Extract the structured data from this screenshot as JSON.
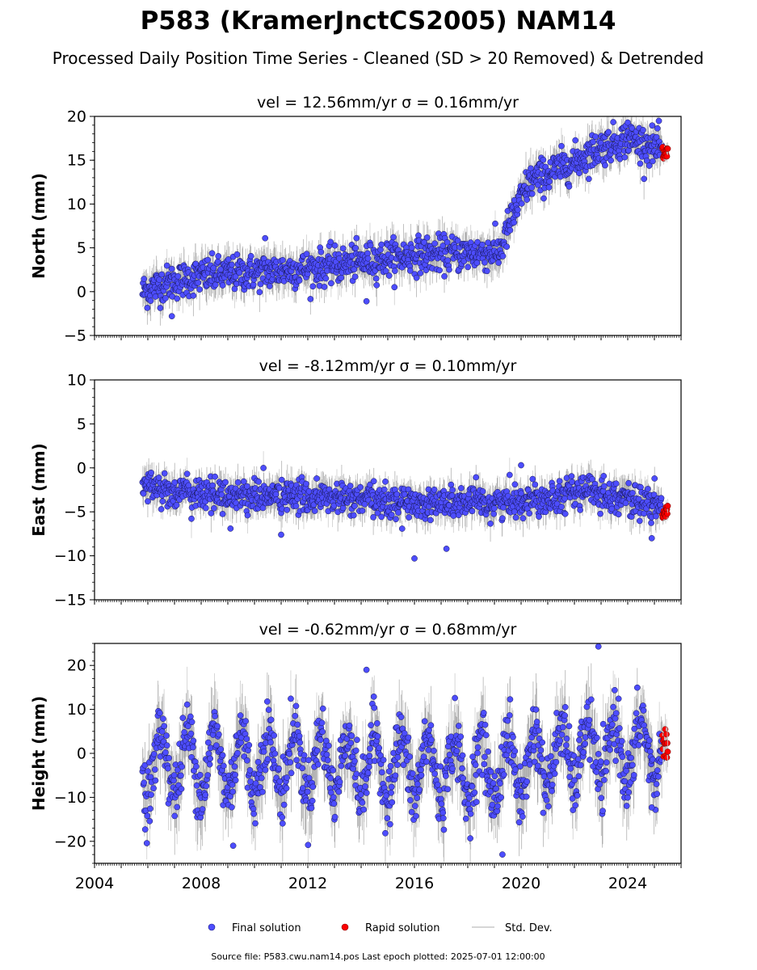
{
  "title": "P583 (KramerJnctCS2005) NAM14",
  "subtitle": "Processed Daily Position Time Series - Cleaned (SD > 20 Removed) & Detrended",
  "footer": "Source file: P583.cwu.nam14.pos  Last epoch plotted: 2025-07-01 12:00:00",
  "legend": {
    "final": "Final solution",
    "rapid": "Rapid solution",
    "std": "Std. Dev."
  },
  "colors": {
    "final": "#4d4dff",
    "rapid": "#ff0000",
    "std": "#c8c8c8",
    "std_dense": "#555555"
  },
  "chart_data": [
    {
      "type": "scatter",
      "panel": "north",
      "title": "vel = 12.56mm/yr   σ = 0.16mm/yr",
      "ylabel": "North (mm)",
      "xlim": [
        2004,
        2026
      ],
      "ylim": [
        -5,
        20
      ],
      "yticks": [
        "−5",
        "0",
        "5",
        "10",
        "15",
        "20"
      ],
      "ytick_values": [
        -5,
        0,
        5,
        10,
        15,
        20
      ],
      "trend": {
        "x": [
          2005.8,
          2006.5,
          2008.0,
          2012.0,
          2016.0,
          2019.2,
          2019.6,
          2020.3,
          2021.0,
          2022.0,
          2023.0,
          2024.0,
          2025.3
        ],
        "y": [
          0.0,
          0.8,
          1.8,
          2.6,
          4.2,
          4.5,
          8.0,
          12.5,
          13.5,
          14.8,
          16.5,
          17.5,
          16.2
        ]
      },
      "noise_sd": 1.0,
      "outliers": [
        {
          "x": 2006.9,
          "y": -2.8
        },
        {
          "x": 2010.4,
          "y": 6.1
        },
        {
          "x": 2014.2,
          "y": -1.1
        },
        {
          "x": 2024.0,
          "y": 19.3
        }
      ],
      "rapid": {
        "x_start": 2025.3,
        "x_end": 2025.5,
        "y_center": 15.8,
        "spread": 0.7
      }
    },
    {
      "type": "scatter",
      "panel": "east",
      "title": "vel = -8.12mm/yr   σ = 0.10mm/yr",
      "ylabel": "East (mm)",
      "xlim": [
        2004,
        2026
      ],
      "ylim": [
        -15,
        10
      ],
      "yticks": [
        "−15",
        "−10",
        "−5",
        "0",
        "5",
        "10"
      ],
      "ytick_values": [
        -15,
        -10,
        -5,
        0,
        5,
        10
      ],
      "trend": {
        "x": [
          2005.8,
          2006.5,
          2008.0,
          2012.0,
          2016.0,
          2019.0,
          2020.5,
          2022.5,
          2024.0,
          2025.3
        ],
        "y": [
          -1.5,
          -2.5,
          -3.0,
          -3.3,
          -4.0,
          -4.0,
          -3.5,
          -2.5,
          -3.5,
          -4.5
        ]
      },
      "noise_sd": 0.9,
      "outliers": [
        {
          "x": 2016.0,
          "y": -10.3
        },
        {
          "x": 2017.2,
          "y": -9.2
        },
        {
          "x": 2011.0,
          "y": -7.6
        },
        {
          "x": 2009.1,
          "y": -6.9
        },
        {
          "x": 2024.9,
          "y": -8.0
        },
        {
          "x": 2020.0,
          "y": 0.3
        }
      ],
      "rapid": {
        "x_start": 2025.3,
        "x_end": 2025.5,
        "y_center": -5.0,
        "spread": 0.8
      }
    },
    {
      "type": "scatter",
      "panel": "height",
      "title": "vel = -0.62mm/yr   σ = 0.68mm/yr",
      "ylabel": "Height (mm)",
      "xlim": [
        2004,
        2026
      ],
      "ylim": [
        -25,
        25
      ],
      "yticks": [
        "−20",
        "−10",
        "0",
        "10",
        "20"
      ],
      "ytick_values": [
        -20,
        -10,
        0,
        10,
        20
      ],
      "trend": {
        "x": [
          2005.8,
          2012.0,
          2019.0,
          2022.0,
          2025.3
        ],
        "y": [
          -2.0,
          -2.0,
          -4.0,
          0.0,
          1.0
        ]
      },
      "seasonal_amp": 7.0,
      "noise_sd": 3.5,
      "outliers": [
        {
          "x": 2014.2,
          "y": 19.0
        },
        {
          "x": 2022.9,
          "y": 24.3
        },
        {
          "x": 2019.3,
          "y": -23.0
        },
        {
          "x": 2009.2,
          "y": -21.0
        },
        {
          "x": 2005.9,
          "y": -17.3
        },
        {
          "x": 2024.9,
          "y": -12.3
        }
      ],
      "rapid": {
        "x_start": 2025.3,
        "x_end": 2025.5,
        "y_center": 2.5,
        "spread": 3.5
      },
      "xticks": [
        "2004",
        "2008",
        "2012",
        "2016",
        "2020",
        "2024"
      ],
      "xtick_values": [
        2004,
        2008,
        2012,
        2016,
        2020,
        2024
      ]
    }
  ]
}
